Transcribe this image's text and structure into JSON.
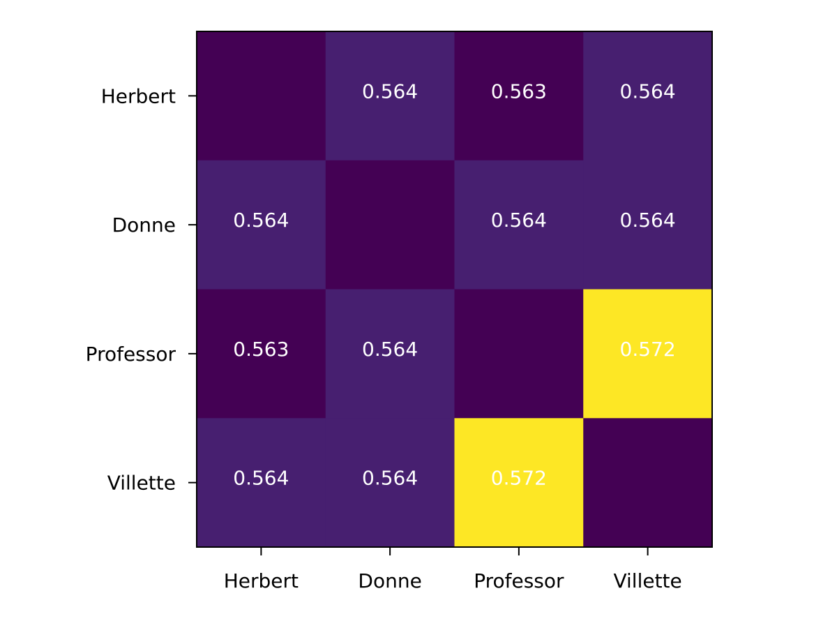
{
  "chart_data": {
    "type": "heatmap",
    "title": "",
    "xlabel": "",
    "ylabel": "",
    "x_categories": [
      "Herbert",
      "Donne",
      "Professor",
      "Villette"
    ],
    "y_categories": [
      "Herbert",
      "Donne",
      "Professor",
      "Villette"
    ],
    "values": [
      [
        null,
        0.564,
        0.563,
        0.564
      ],
      [
        0.564,
        null,
        0.564,
        0.564
      ],
      [
        0.563,
        0.564,
        null,
        0.572
      ],
      [
        0.564,
        0.564,
        0.572,
        null
      ]
    ],
    "cell_labels": [
      [
        "",
        "0.564",
        "0.563",
        "0.564"
      ],
      [
        "0.564",
        "",
        "0.564",
        "0.564"
      ],
      [
        "0.563",
        "0.564",
        "",
        "0.572"
      ],
      [
        "0.564",
        "0.564",
        "0.572",
        ""
      ]
    ],
    "diagonal_value": 0.563,
    "colormap": "viridis",
    "grid": false,
    "colors": {
      "low": "#440154",
      "mid": "#482173",
      "high": "#fde725",
      "label_text": "#ffffff",
      "axis": "#000000"
    }
  }
}
